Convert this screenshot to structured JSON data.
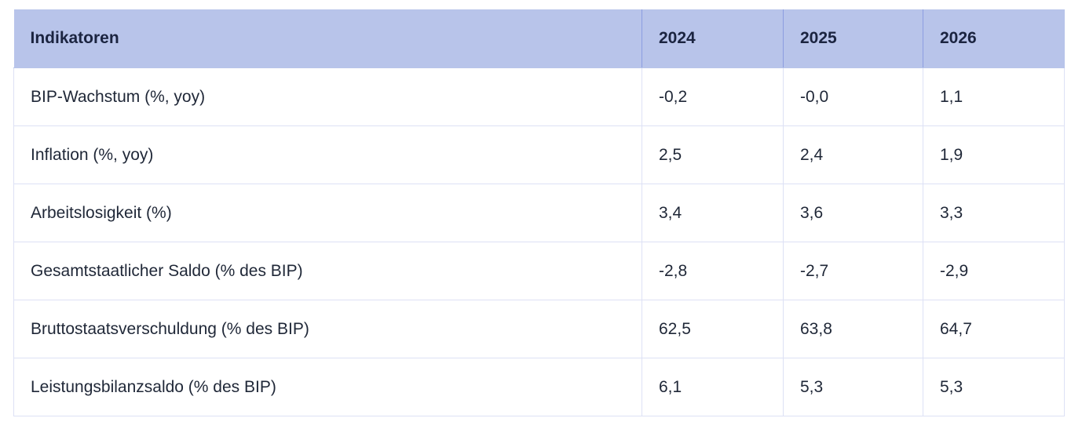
{
  "table": {
    "headers": [
      "Indikatoren",
      "2024",
      "2025",
      "2026"
    ],
    "rows": [
      [
        "BIP-Wachstum (%, yoy)",
        "-0,2",
        "-0,0",
        "1,1"
      ],
      [
        "Inflation (%, yoy)",
        "2,5",
        "2,4",
        "1,9"
      ],
      [
        "Arbeitslosigkeit (%)",
        "3,4",
        "3,6",
        "3,3"
      ],
      [
        "Gesamtstaatlicher Saldo (% des BIP)",
        "-2,8",
        "-2,7",
        "-2,9"
      ],
      [
        "Bruttostaatsverschuldung (% des BIP)",
        "62,5",
        "63,8",
        "64,7"
      ],
      [
        "Leistungsbilanzsaldo (% des BIP)",
        "6,1",
        "5,3",
        "5,3"
      ]
    ]
  },
  "colors": {
    "header_background": "#b8c4ea",
    "header_divider": "#8c9de0",
    "cell_border": "#dde1f5",
    "text": "#1f2737"
  }
}
